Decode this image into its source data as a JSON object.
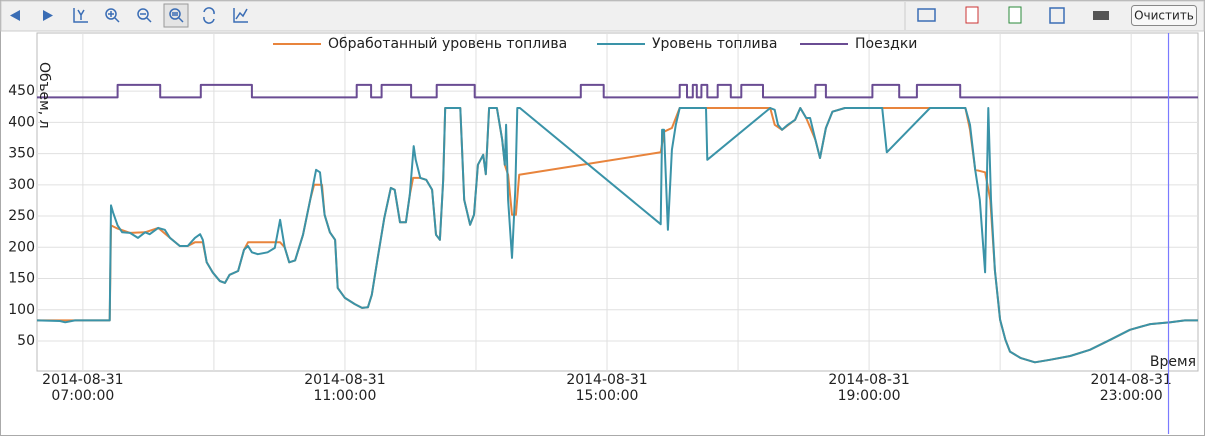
{
  "toolbar": {
    "clear_button": "Очистить"
  },
  "chart_data": {
    "type": "line",
    "ylabel": "Объем, л",
    "xlabel": "Время",
    "xlim": [
      6.3,
      24.02
    ],
    "ylim": [
      2,
      543
    ],
    "yticks": [
      50,
      100,
      150,
      200,
      250,
      300,
      350,
      400,
      450
    ],
    "xticks": [
      {
        "value": 7,
        "label": "2014-08-31 07:00:00"
      },
      {
        "value": 11,
        "label": "2014-08-31 11:00:00"
      },
      {
        "value": 15,
        "label": "2014-08-31 15:00:00"
      },
      {
        "value": 19,
        "label": "2014-08-31 19:00:00"
      },
      {
        "value": 23,
        "label": "2014-08-31 23:00:00"
      }
    ],
    "xminor": [
      9,
      13,
      17,
      21
    ],
    "grid": true,
    "legend": "top",
    "cursor_x": 23.57,
    "cursor_color": "#7a7aff",
    "series": [
      {
        "name": "Обработанный уровень топлива",
        "color": "#e8843c",
        "x": [
          6.3,
          7.41,
          7.43,
          7.53,
          7.72,
          7.95,
          8.15,
          8.33,
          8.48,
          8.6,
          8.71,
          8.83,
          8.89,
          8.98,
          9.09,
          9.17,
          9.24,
          9.37,
          9.46,
          9.52,
          10.01,
          10.08,
          10.15,
          10.24,
          10.36,
          10.47,
          10.53,
          10.65,
          10.69,
          10.77,
          10.85,
          10.89,
          11.0,
          11.15,
          11.26,
          11.35,
          11.41,
          11.5,
          11.6,
          11.7,
          11.76,
          11.84,
          11.93,
          11.99,
          12.04,
          12.15,
          12.24,
          12.33,
          12.39,
          12.45,
          12.5,
          12.53,
          12.76,
          12.82,
          12.91,
          12.97,
          13.03,
          13.11,
          13.15,
          13.2,
          13.32,
          13.4,
          13.44,
          13.49,
          13.55,
          13.61,
          13.66,
          15.82,
          15.87,
          15.99,
          16.11,
          17.49,
          17.56,
          17.67,
          17.87,
          17.95,
          18.04,
          18.18,
          18.25,
          18.34,
          18.44,
          18.63,
          20.47,
          20.54,
          20.62,
          20.77,
          20.85,
          20.92,
          21.0,
          21.08,
          21.15,
          21.31,
          21.53,
          21.76,
          22.07,
          22.37,
          22.68,
          22.98,
          23.29,
          23.6,
          23.82,
          24.02
        ],
        "values": [
          83,
          83,
          235,
          230,
          223,
          224,
          231,
          215,
          202,
          202,
          208,
          208,
          176,
          160,
          146,
          143,
          156,
          162,
          196,
          208,
          208,
          200,
          176,
          179,
          220,
          276,
          300,
          300,
          252,
          224,
          212,
          135,
          119,
          109,
          103,
          104,
          124,
          183,
          247,
          295,
          292,
          240,
          240,
          284,
          311,
          311,
          308,
          292,
          220,
          212,
          308,
          423,
          423,
          276,
          236,
          252,
          332,
          348,
          317,
          423,
          423,
          372,
          332,
          316,
          252,
          252,
          316,
          352,
          385,
          391,
          423,
          423,
          396,
          388,
          404,
          423,
          407,
          372,
          343,
          391,
          417,
          423,
          423,
          388,
          324,
          320,
          276,
          163,
          84,
          52,
          33,
          23,
          16,
          20,
          26,
          36,
          52,
          68,
          77,
          80,
          83,
          83
        ]
      },
      {
        "name": "Уровень топлива",
        "color": "#3a93a8",
        "x": [
          6.3,
          6.65,
          6.73,
          6.88,
          7.41,
          7.43,
          7.46,
          7.53,
          7.6,
          7.72,
          7.84,
          7.95,
          8.02,
          8.15,
          8.25,
          8.33,
          8.48,
          8.6,
          8.71,
          8.79,
          8.83,
          8.89,
          8.98,
          9.09,
          9.17,
          9.24,
          9.37,
          9.46,
          9.52,
          9.58,
          9.67,
          9.82,
          9.93,
          10.01,
          10.08,
          10.15,
          10.24,
          10.36,
          10.47,
          10.56,
          10.62,
          10.69,
          10.77,
          10.85,
          10.89,
          11.0,
          11.15,
          11.26,
          11.35,
          11.41,
          11.5,
          11.6,
          11.7,
          11.76,
          11.84,
          11.93,
          11.99,
          12.05,
          12.08,
          12.15,
          12.24,
          12.33,
          12.39,
          12.45,
          12.5,
          12.53,
          12.76,
          12.82,
          12.91,
          12.97,
          13.03,
          13.11,
          13.15,
          13.2,
          13.32,
          13.4,
          13.44,
          13.46,
          13.49,
          13.55,
          13.6,
          13.63,
          13.67,
          15.82,
          15.84,
          15.87,
          15.93,
          15.99,
          16.05,
          16.11,
          16.51,
          16.53,
          17.49,
          17.56,
          17.61,
          17.67,
          17.76,
          17.87,
          17.95,
          18.04,
          18.1,
          18.18,
          18.25,
          18.34,
          18.44,
          18.63,
          19.2,
          19.27,
          19.93,
          20.47,
          20.54,
          20.62,
          20.69,
          20.77,
          20.82,
          20.86,
          20.92,
          21.0,
          21.08,
          21.15,
          21.31,
          21.53,
          21.76,
          22.07,
          22.37,
          22.68,
          22.98,
          23.29,
          23.6,
          23.82,
          24.02
        ],
        "values": [
          83,
          82,
          80,
          83,
          83,
          267,
          256,
          235,
          224,
          223,
          215,
          224,
          221,
          231,
          228,
          215,
          202,
          202,
          215,
          221,
          212,
          176,
          160,
          146,
          143,
          156,
          162,
          196,
          202,
          192,
          189,
          192,
          199,
          244,
          200,
          176,
          179,
          220,
          276,
          324,
          320,
          252,
          224,
          212,
          135,
          119,
          109,
          103,
          104,
          124,
          183,
          247,
          295,
          292,
          240,
          240,
          284,
          362,
          340,
          311,
          308,
          292,
          220,
          212,
          308,
          423,
          423,
          276,
          236,
          252,
          332,
          348,
          317,
          423,
          423,
          372,
          332,
          396,
          276,
          183,
          292,
          423,
          423,
          237,
          388,
          388,
          228,
          356,
          396,
          423,
          423,
          340,
          423,
          420,
          396,
          388,
          396,
          404,
          423,
          407,
          407,
          372,
          343,
          391,
          417,
          423,
          423,
          352,
          423,
          423,
          396,
          324,
          276,
          160,
          423,
          276,
          163,
          84,
          52,
          33,
          23,
          16,
          20,
          26,
          36,
          52,
          68,
          77,
          80,
          83,
          83
        ]
      },
      {
        "name": "Поездки",
        "color": "#6a4c93",
        "x": [
          6.3,
          7.53,
          7.53,
          8.18,
          8.18,
          8.8,
          8.8,
          9.58,
          9.58,
          11.18,
          11.18,
          11.4,
          11.4,
          11.56,
          11.56,
          12.01,
          12.01,
          12.4,
          12.4,
          12.98,
          12.98,
          14.6,
          14.6,
          14.95,
          14.95,
          16.11,
          16.11,
          16.22,
          16.22,
          16.31,
          16.31,
          16.37,
          16.37,
          16.44,
          16.44,
          16.53,
          16.53,
          16.69,
          16.69,
          16.89,
          16.89,
          17.05,
          17.05,
          17.38,
          17.38,
          18.18,
          18.18,
          18.34,
          18.34,
          19.05,
          19.05,
          19.46,
          19.46,
          19.73,
          19.73,
          20.39,
          20.39,
          24.02
        ],
        "values": [
          440,
          440,
          460,
          460,
          440,
          440,
          460,
          460,
          440,
          440,
          460,
          460,
          440,
          440,
          460,
          460,
          440,
          440,
          460,
          460,
          440,
          440,
          460,
          460,
          440,
          440,
          460,
          460,
          440,
          440,
          460,
          460,
          440,
          440,
          460,
          460,
          440,
          440,
          460,
          460,
          440,
          440,
          460,
          460,
          440,
          440,
          460,
          460,
          440,
          440,
          460,
          460,
          440,
          440,
          460,
          460,
          440,
          440
        ]
      }
    ]
  }
}
